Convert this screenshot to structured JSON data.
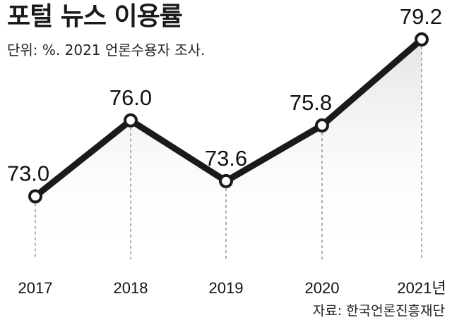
{
  "title": "포털 뉴스 이용률",
  "subtitle": "단위: %. 2021 언론수용자 조사.",
  "source": "자료: 한국언론진흥재단",
  "colors": {
    "line": "#1a1a1a",
    "fill": "#ececec",
    "guide": "#777777",
    "background": "#ffffff"
  },
  "chart_data": {
    "type": "line",
    "categories": [
      "2017",
      "2018",
      "2019",
      "2020",
      "2021년"
    ],
    "values": [
      73.0,
      76.0,
      73.6,
      75.8,
      79.2
    ],
    "value_labels": [
      "73.0",
      "76.0",
      "73.6",
      "75.8",
      "79.2"
    ],
    "title": "포털 뉴스 이용률",
    "subtitle": "단위: %. 2021 언론수용자 조사.",
    "ylim": [
      68.5,
      80.2
    ],
    "grid": false,
    "legend": "none"
  }
}
